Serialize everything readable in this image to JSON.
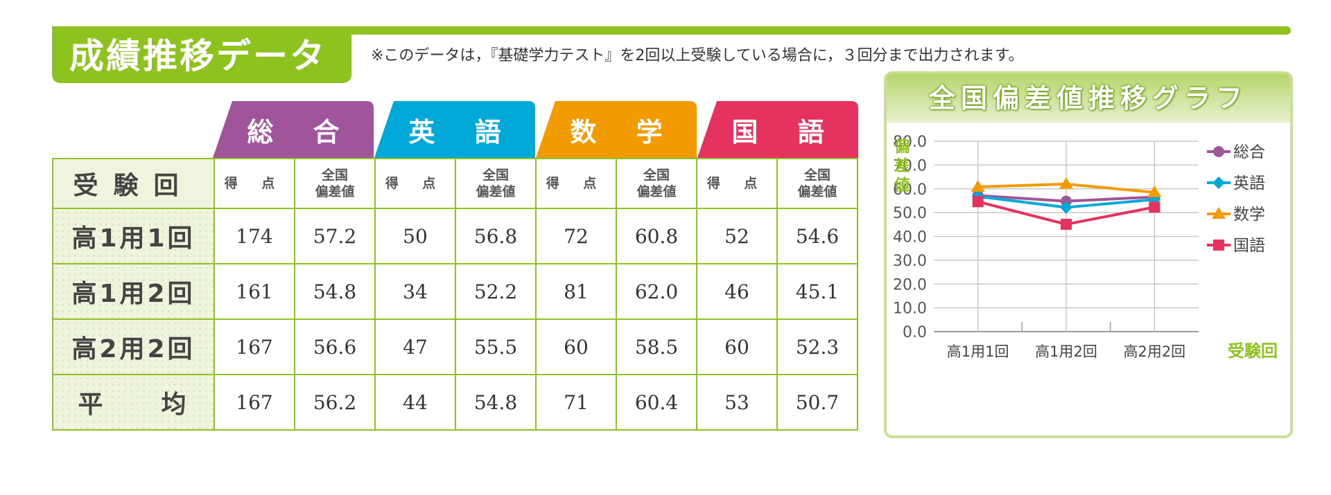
{
  "header": {
    "title": "成績推移データ",
    "note": "※このデータは，『基礎学力テスト』を2回以上受験している場合に，３回分まで出力されます。"
  },
  "table": {
    "row_header": "受験回",
    "subjects": [
      {
        "label": "総 合",
        "color": "#a0559b"
      },
      {
        "label": "英 語",
        "color": "#00a8d8"
      },
      {
        "label": "数 学",
        "color": "#f29b00"
      },
      {
        "label": "国 語",
        "color": "#e5325e"
      }
    ],
    "col_score": "得 点",
    "col_dev_line1": "全国",
    "col_dev_line2": "偏差値",
    "rows": [
      {
        "label": "高1用1回",
        "values": [
          "174",
          "57.2",
          "50",
          "56.8",
          "72",
          "60.8",
          "52",
          "54.6"
        ]
      },
      {
        "label": "高1用2回",
        "values": [
          "161",
          "54.8",
          "34",
          "52.2",
          "81",
          "62.0",
          "46",
          "45.1"
        ]
      },
      {
        "label": "高2用2回",
        "values": [
          "167",
          "56.6",
          "47",
          "55.5",
          "60",
          "58.5",
          "60",
          "52.3"
        ]
      },
      {
        "label": "平　　均",
        "values": [
          "167",
          "56.2",
          "44",
          "54.8",
          "71",
          "60.4",
          "53",
          "50.7"
        ]
      }
    ]
  },
  "chart_data": {
    "type": "line",
    "title": "全国偏差値推移グラフ",
    "ylabel": "偏差値",
    "xlabel": "受験回",
    "categories": [
      "高1用1回",
      "高1用2回",
      "高2用2回"
    ],
    "ylim": [
      0,
      80
    ],
    "yticks": [
      "0.0",
      "10.0",
      "20.0",
      "30.0",
      "40.0",
      "50.0",
      "60.0",
      "70.0",
      "80.0"
    ],
    "grid": true,
    "legend": "right",
    "series": [
      {
        "name": "総合",
        "color": "#a0559b",
        "marker": "circle",
        "values": [
          57.2,
          54.8,
          56.6
        ]
      },
      {
        "name": "英語",
        "color": "#00a8d8",
        "marker": "diamond",
        "values": [
          56.8,
          52.2,
          55.5
        ]
      },
      {
        "name": "数学",
        "color": "#f29b00",
        "marker": "triangle",
        "values": [
          60.8,
          62.0,
          58.5
        ]
      },
      {
        "name": "国語",
        "color": "#e5325e",
        "marker": "square",
        "values": [
          54.6,
          45.1,
          52.3
        ]
      }
    ]
  }
}
